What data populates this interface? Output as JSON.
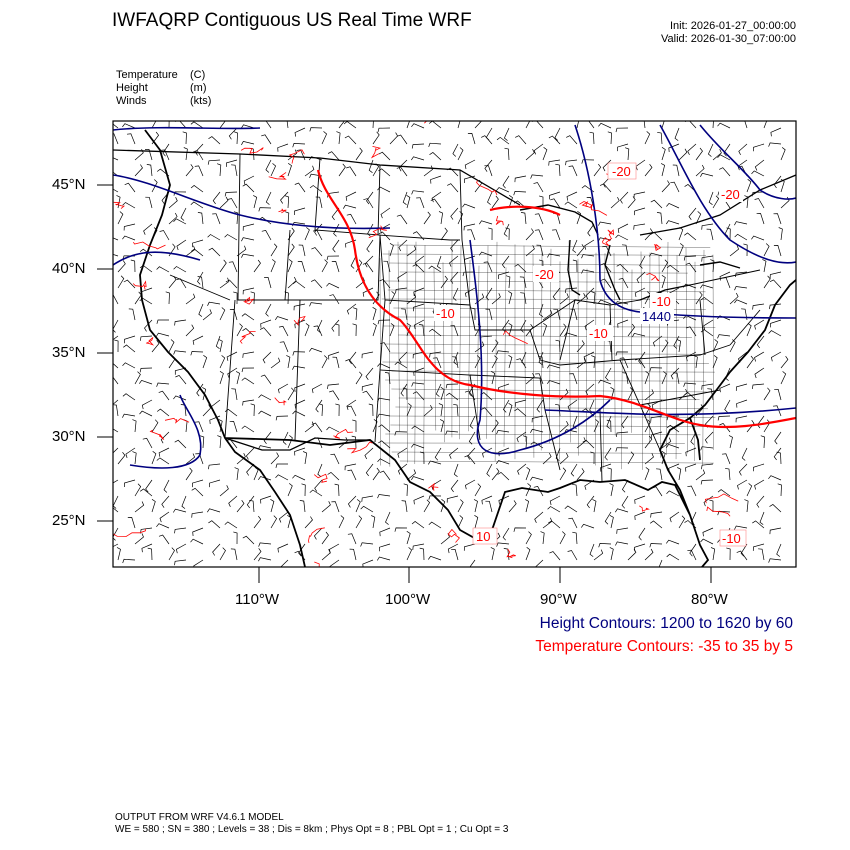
{
  "header": {
    "title": "IWFAQRP Contiguous US Real Time WRF",
    "init": "Init: 2026-01-27_00:00:00",
    "valid": "Valid: 2026-01-30_07:00:00"
  },
  "fields": [
    {
      "name": "Temperature",
      "unit": "(C)"
    },
    {
      "name": "Height",
      "unit": "(m)"
    },
    {
      "name": "Winds",
      "unit": "(kts)"
    }
  ],
  "map": {
    "lat_labels": [
      "45°N",
      "40°N",
      "35°N",
      "30°N",
      "25°N"
    ],
    "lon_labels": [
      "110°W",
      "100°W",
      "90°W",
      "80°W"
    ],
    "temp_contour_labels": [
      "-20",
      "-20",
      "-10",
      "-10",
      "-20",
      "-10",
      "10",
      "-10"
    ],
    "height_contour_labels": [
      "1440"
    ],
    "colors": {
      "height": "#00007f",
      "temperature": "#ff0000",
      "border": "#000000"
    }
  },
  "legend": {
    "height": "Height Contours: 1200 to 1620 by 60",
    "temperature": "Temperature Contours: -35 to 35 by 5"
  },
  "footer": {
    "line1": "OUTPUT FROM WRF V4.6.1 MODEL",
    "line2": "WE = 580 ; SN = 380 ; Levels = 38 ; Dis = 8km ; Phys Opt = 8 ; PBL Opt = 1 ; Cu Opt = 3"
  }
}
